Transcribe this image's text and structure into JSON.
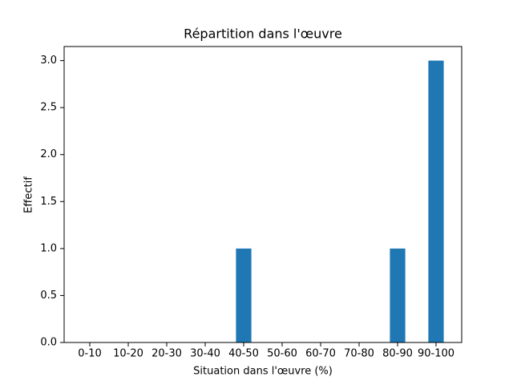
{
  "chart_data": {
    "type": "bar",
    "title": "Répartition dans l'œuvre",
    "x_label": "Situation dans l'œuvre (%)",
    "y_label": "Effectif",
    "categories": [
      "0-10",
      "10-20",
      "20-30",
      "30-40",
      "40-50",
      "50-60",
      "60-70",
      "70-80",
      "80-90",
      "90-100"
    ],
    "values": [
      0,
      0,
      0,
      0,
      1,
      0,
      0,
      0,
      1,
      3
    ],
    "color": "#1f77b4",
    "ylim": [
      0,
      3.15
    ],
    "yticks": [
      {
        "value": 0,
        "label": "0.0"
      },
      0.5,
      {
        "value": 1,
        "label": "1.0"
      },
      1.5,
      {
        "value": 2,
        "label": "2.0"
      },
      2.5,
      {
        "value": 3,
        "label": "3.0"
      }
    ],
    "grid": false
  }
}
